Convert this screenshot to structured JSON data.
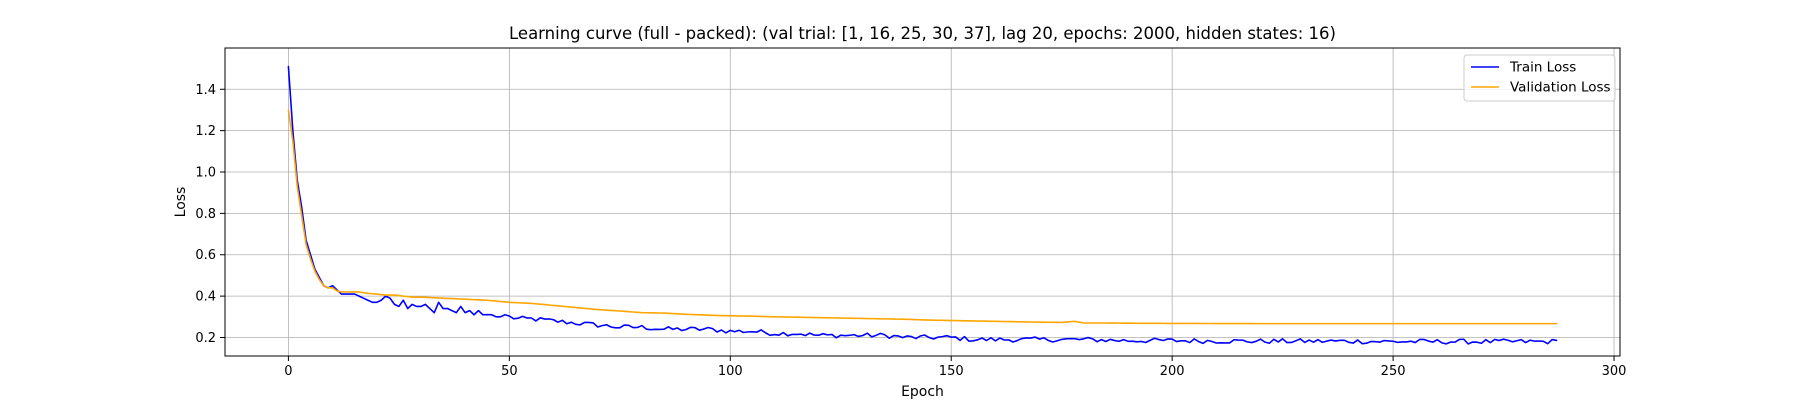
{
  "chart_data": {
    "type": "line",
    "title": "Learning curve (full - packed): (val trial: [1, 16, 25, 30, 37], lag 20, epochs: 2000, hidden states: 16)",
    "xlabel": "Epoch",
    "ylabel": "Loss",
    "xlim": [
      -14.35,
      301.35
    ],
    "ylim": [
      0.1105,
      1.5995
    ],
    "xticks": [
      0,
      50,
      100,
      150,
      200,
      250,
      300
    ],
    "yticks": [
      0.2,
      0.4,
      0.6,
      0.8,
      1.0,
      1.2,
      1.4
    ],
    "grid": true,
    "legend_position": "upper right",
    "series": [
      {
        "name": "Train Loss",
        "color": "#0000ff",
        "anchors": [
          [
            0,
            1.51
          ],
          [
            1,
            1.2
          ],
          [
            2,
            0.96
          ],
          [
            3,
            0.83
          ],
          [
            4,
            0.67
          ],
          [
            5,
            0.6
          ],
          [
            6,
            0.53
          ],
          [
            7,
            0.49
          ],
          [
            8,
            0.45
          ],
          [
            9,
            0.44
          ],
          [
            10,
            0.45
          ],
          [
            11,
            0.43
          ],
          [
            12,
            0.41
          ],
          [
            13,
            0.41
          ],
          [
            14,
            0.41
          ],
          [
            15,
            0.41
          ],
          [
            16,
            0.4
          ],
          [
            17,
            0.39
          ],
          [
            18,
            0.38
          ],
          [
            19,
            0.37
          ],
          [
            20,
            0.37
          ],
          [
            21,
            0.38
          ],
          [
            22,
            0.4
          ],
          [
            23,
            0.39
          ],
          [
            24,
            0.36
          ],
          [
            25,
            0.35
          ],
          [
            26,
            0.38
          ],
          [
            27,
            0.34
          ],
          [
            28,
            0.36
          ],
          [
            29,
            0.35
          ],
          [
            30,
            0.35
          ],
          [
            31,
            0.36
          ],
          [
            32,
            0.34
          ],
          [
            33,
            0.32
          ],
          [
            34,
            0.37
          ],
          [
            35,
            0.34
          ],
          [
            36,
            0.34
          ],
          [
            37,
            0.33
          ],
          [
            38,
            0.32
          ],
          [
            39,
            0.35
          ],
          [
            40,
            0.32
          ],
          [
            41,
            0.33
          ],
          [
            42,
            0.31
          ],
          [
            43,
            0.33
          ],
          [
            44,
            0.31
          ],
          [
            45,
            0.31
          ],
          [
            46,
            0.31
          ],
          [
            47,
            0.3
          ],
          [
            48,
            0.3
          ],
          [
            49,
            0.31
          ],
          [
            50,
            0.3
          ],
          [
            52,
            0.29
          ],
          [
            55,
            0.29
          ],
          [
            60,
            0.28
          ],
          [
            65,
            0.27
          ],
          [
            70,
            0.26
          ],
          [
            75,
            0.25
          ],
          [
            80,
            0.25
          ],
          [
            85,
            0.24
          ],
          [
            90,
            0.24
          ],
          [
            95,
            0.24
          ],
          [
            100,
            0.23
          ],
          [
            105,
            0.23
          ],
          [
            110,
            0.22
          ],
          [
            115,
            0.22
          ],
          [
            120,
            0.21
          ],
          [
            125,
            0.21
          ],
          [
            130,
            0.21
          ],
          [
            135,
            0.21
          ],
          [
            140,
            0.2
          ],
          [
            145,
            0.2
          ],
          [
            150,
            0.2
          ],
          [
            155,
            0.19
          ],
          [
            160,
            0.19
          ],
          [
            170,
            0.19
          ],
          [
            180,
            0.19
          ],
          [
            190,
            0.185
          ],
          [
            200,
            0.185
          ],
          [
            210,
            0.183
          ],
          [
            220,
            0.182
          ],
          [
            230,
            0.182
          ],
          [
            240,
            0.182
          ],
          [
            250,
            0.18
          ],
          [
            260,
            0.18
          ],
          [
            270,
            0.18
          ],
          [
            280,
            0.18
          ],
          [
            287,
            0.18
          ]
        ],
        "n_points": 288,
        "noise_start": 50,
        "noise_amplitude": 0.012
      },
      {
        "name": "Validation Loss",
        "color": "#ffa500",
        "anchors": [
          [
            0,
            1.3
          ],
          [
            1,
            1.15
          ],
          [
            2,
            0.93
          ],
          [
            3,
            0.79
          ],
          [
            4,
            0.65
          ],
          [
            5,
            0.58
          ],
          [
            6,
            0.52
          ],
          [
            7,
            0.48
          ],
          [
            8,
            0.45
          ],
          [
            9,
            0.44
          ],
          [
            10,
            0.44
          ],
          [
            11,
            0.425
          ],
          [
            12,
            0.42
          ],
          [
            14,
            0.42
          ],
          [
            16,
            0.42
          ],
          [
            18,
            0.413
          ],
          [
            20,
            0.41
          ],
          [
            22,
            0.405
          ],
          [
            24,
            0.405
          ],
          [
            26,
            0.4
          ],
          [
            28,
            0.395
          ],
          [
            30,
            0.395
          ],
          [
            35,
            0.39
          ],
          [
            40,
            0.385
          ],
          [
            45,
            0.38
          ],
          [
            50,
            0.37
          ],
          [
            55,
            0.365
          ],
          [
            60,
            0.355
          ],
          [
            65,
            0.345
          ],
          [
            70,
            0.335
          ],
          [
            75,
            0.328
          ],
          [
            80,
            0.32
          ],
          [
            85,
            0.318
          ],
          [
            90,
            0.312
          ],
          [
            95,
            0.308
          ],
          [
            100,
            0.305
          ],
          [
            105,
            0.303
          ],
          [
            110,
            0.3
          ],
          [
            115,
            0.298
          ],
          [
            120,
            0.296
          ],
          [
            125,
            0.294
          ],
          [
            130,
            0.292
          ],
          [
            135,
            0.29
          ],
          [
            140,
            0.288
          ],
          [
            145,
            0.284
          ],
          [
            150,
            0.282
          ],
          [
            155,
            0.28
          ],
          [
            160,
            0.278
          ],
          [
            165,
            0.276
          ],
          [
            170,
            0.274
          ],
          [
            175,
            0.273
          ],
          [
            178,
            0.278
          ],
          [
            180,
            0.27
          ],
          [
            185,
            0.27
          ],
          [
            190,
            0.269
          ],
          [
            200,
            0.268
          ],
          [
            220,
            0.267
          ],
          [
            250,
            0.267
          ],
          [
            287,
            0.267
          ]
        ],
        "n_points": 288,
        "noise_start": 999,
        "noise_amplitude": 0
      }
    ]
  }
}
